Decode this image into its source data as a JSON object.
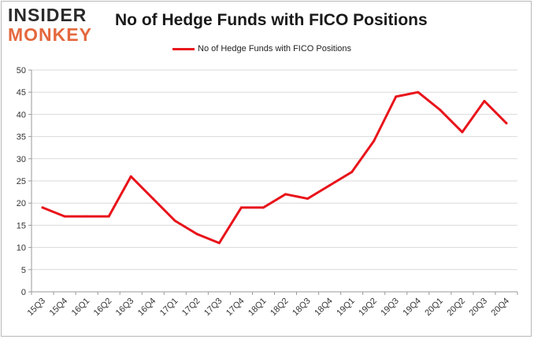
{
  "header": {
    "logo_top": "INSIDER",
    "logo_bottom": "MONKEY",
    "title": "No of Hedge Funds with FICO Positions"
  },
  "colors": {
    "series": "#e8141b",
    "grid": "#d9d9d9",
    "axis": "#9a9a9a",
    "logo_dark": "#2a2a2a",
    "logo_accent": "#e4683e"
  },
  "chart_data": {
    "type": "line",
    "title": "No of Hedge Funds with FICO Positions",
    "xlabel": "",
    "ylabel": "",
    "ylim": [
      0,
      50
    ],
    "yticks": [
      0,
      5,
      10,
      15,
      20,
      25,
      30,
      35,
      40,
      45,
      50
    ],
    "grid": true,
    "legend_position": "top-center",
    "categories": [
      "15Q3",
      "15Q4",
      "16Q1",
      "16Q2",
      "16Q3",
      "16Q4",
      "17Q1",
      "17Q2",
      "17Q3",
      "17Q4",
      "18Q1",
      "18Q2",
      "18Q3",
      "18Q4",
      "19Q1",
      "19Q2",
      "19Q3",
      "19Q4",
      "20Q1",
      "20Q2",
      "20Q3",
      "20Q4"
    ],
    "series": [
      {
        "name": "No of Hedge Funds with FICO Positions",
        "color": "#e8141b",
        "values": [
          19,
          17,
          17,
          17,
          26,
          21,
          16,
          13,
          11,
          19,
          19,
          22,
          21,
          24,
          27,
          34,
          44,
          45,
          41,
          36,
          43,
          38
        ]
      }
    ]
  }
}
